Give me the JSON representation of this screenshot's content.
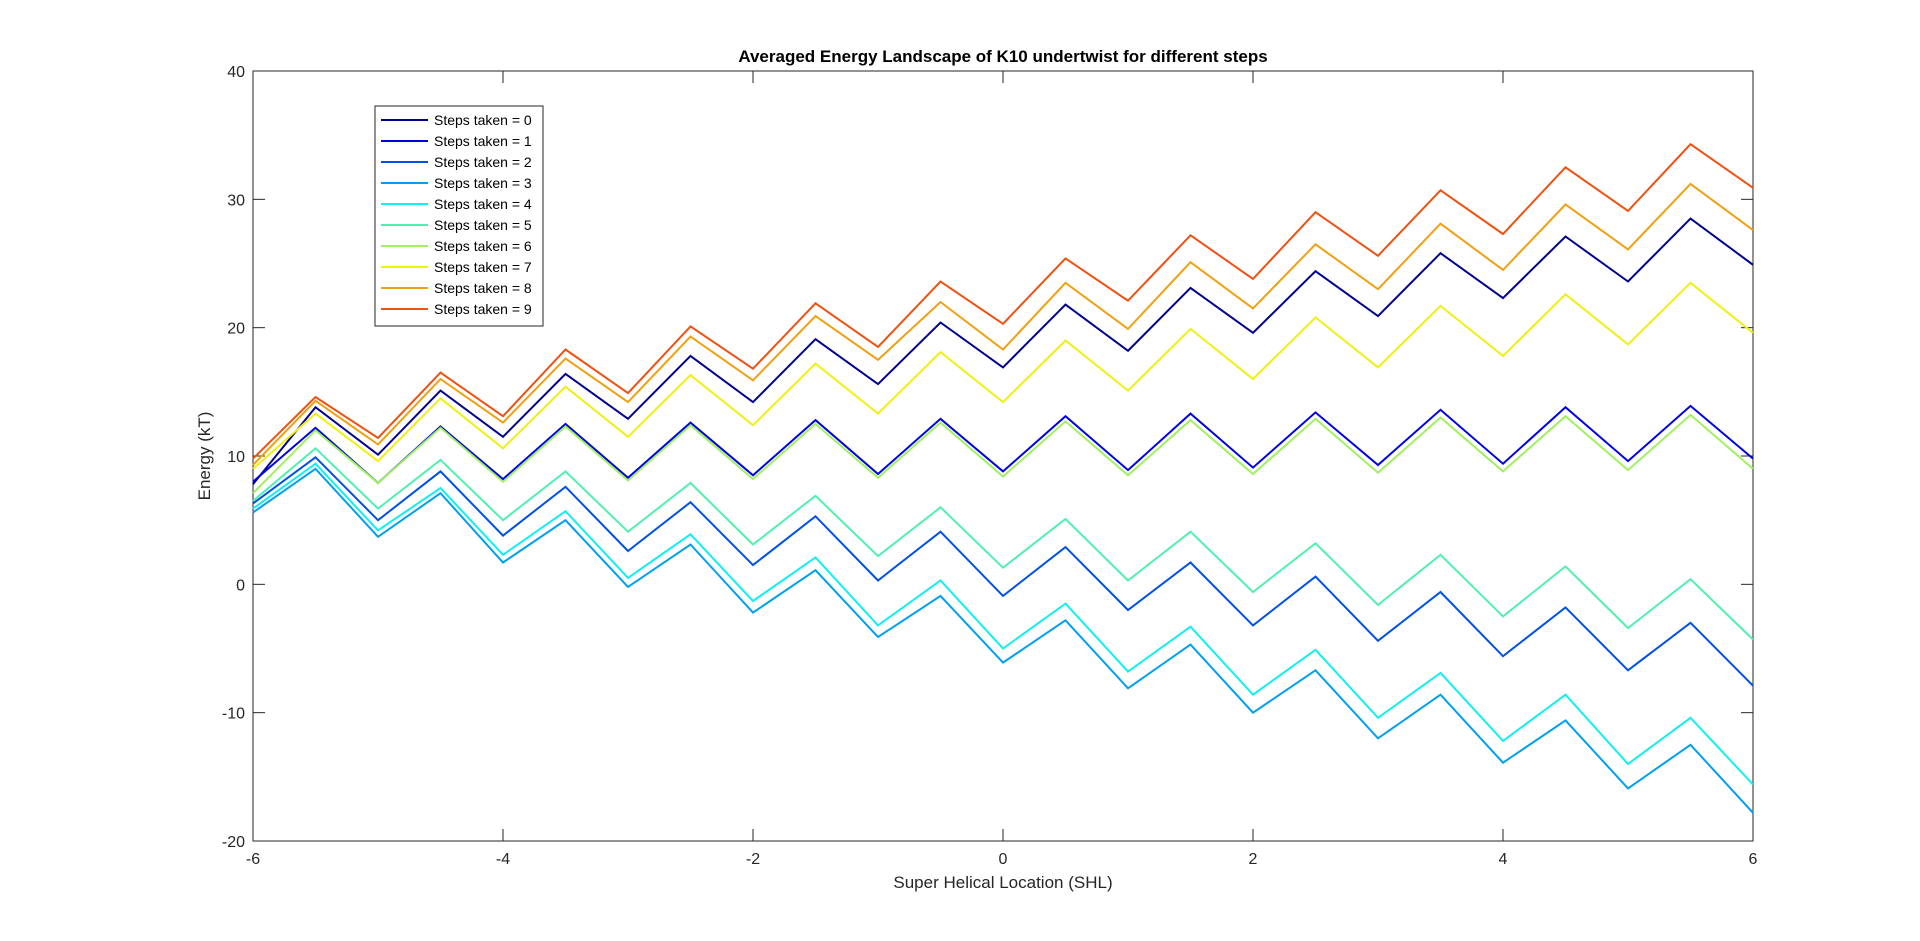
{
  "chart_data": {
    "type": "line",
    "title": "Averaged Energy Landscape of K10 undertwist for different steps",
    "xlabel": "Super Helical Location (SHL)",
    "ylabel": "Energy (kT)",
    "xlim": [
      -6,
      6
    ],
    "ylim": [
      -20,
      40
    ],
    "xticks": [
      -6,
      -4,
      -2,
      0,
      2,
      4,
      6
    ],
    "yticks": [
      -20,
      -10,
      0,
      10,
      20,
      30,
      40
    ],
    "grid": false,
    "box": true,
    "legend_position": "top-left",
    "x": [
      -6,
      -5.5,
      -5,
      -4.5,
      -4,
      -3.5,
      -3,
      -2.5,
      -2,
      -1.5,
      -1,
      -0.5,
      0,
      0.5,
      1,
      1.5,
      2,
      2.5,
      3,
      3.5,
      4,
      4.5,
      5,
      5.5,
      6
    ],
    "series": [
      {
        "name": "Steps taken = 0",
        "color": "#00008f",
        "values": [
          7.8,
          13.8,
          10.1,
          15.1,
          11.5,
          16.4,
          12.9,
          17.8,
          14.2,
          19.1,
          15.6,
          20.4,
          16.9,
          21.8,
          18.2,
          23.1,
          19.6,
          24.4,
          20.9,
          25.8,
          22.3,
          27.1,
          23.6,
          28.5,
          24.9
        ]
      },
      {
        "name": "Steps taken = 1",
        "color": "#0000e8",
        "values": [
          8.0,
          12.2,
          7.9,
          12.3,
          8.2,
          12.5,
          8.3,
          12.6,
          8.5,
          12.8,
          8.6,
          12.9,
          8.8,
          13.1,
          8.9,
          13.3,
          9.1,
          13.4,
          9.3,
          13.6,
          9.4,
          13.8,
          9.6,
          13.9,
          9.8
        ]
      },
      {
        "name": "Steps taken = 2",
        "color": "#0050ea",
        "values": [
          6.3,
          9.9,
          5.0,
          8.8,
          3.8,
          7.6,
          2.6,
          6.4,
          1.5,
          5.3,
          0.3,
          4.1,
          -0.9,
          2.9,
          -2.0,
          1.7,
          -3.2,
          0.6,
          -4.4,
          -0.6,
          -5.6,
          -1.8,
          -6.7,
          -3.0,
          -7.9
        ]
      },
      {
        "name": "Steps taken = 3",
        "color": "#00a0f0",
        "values": [
          5.6,
          9.0,
          3.7,
          7.1,
          1.7,
          5.0,
          -0.2,
          3.1,
          -2.2,
          1.1,
          -4.1,
          -0.9,
          -6.1,
          -2.8,
          -8.1,
          -4.7,
          -10.0,
          -6.7,
          -12.0,
          -8.6,
          -13.9,
          -10.6,
          -15.9,
          -12.5,
          -17.8
        ]
      },
      {
        "name": "Steps taken = 4",
        "color": "#10f0f0",
        "values": [
          5.9,
          9.4,
          4.2,
          7.5,
          2.3,
          5.7,
          0.5,
          3.9,
          -1.3,
          2.1,
          -3.2,
          0.3,
          -5.0,
          -1.5,
          -6.8,
          -3.3,
          -8.6,
          -5.1,
          -10.4,
          -6.9,
          -12.2,
          -8.6,
          -14.0,
          -10.4,
          -15.6
        ]
      },
      {
        "name": "Steps taken = 5",
        "color": "#50f0b0",
        "values": [
          6.5,
          10.6,
          5.9,
          9.7,
          5.0,
          8.8,
          4.1,
          7.9,
          3.1,
          6.9,
          2.2,
          6.0,
          1.3,
          5.1,
          0.3,
          4.1,
          -0.6,
          3.2,
          -1.6,
          2.3,
          -2.5,
          1.4,
          -3.4,
          0.4,
          -4.3
        ]
      },
      {
        "name": "Steps taken = 6",
        "color": "#a0f060",
        "values": [
          7.1,
          12.0,
          7.9,
          12.2,
          8.0,
          12.3,
          8.1,
          12.4,
          8.2,
          12.5,
          8.3,
          12.6,
          8.4,
          12.7,
          8.5,
          12.8,
          8.6,
          12.9,
          8.7,
          13.0,
          8.8,
          13.1,
          8.9,
          13.2,
          9.0
        ]
      },
      {
        "name": "Steps taken = 7",
        "color": "#f0f010",
        "values": [
          9.0,
          13.3,
          9.6,
          14.5,
          10.6,
          15.4,
          11.5,
          16.3,
          12.4,
          17.2,
          13.3,
          18.1,
          14.2,
          19.0,
          15.1,
          19.9,
          16.0,
          20.8,
          16.9,
          21.7,
          17.8,
          22.6,
          18.7,
          23.5,
          19.6
        ]
      },
      {
        "name": "Steps taken = 8",
        "color": "#f0a010",
        "values": [
          9.3,
          14.3,
          10.9,
          16.0,
          12.6,
          17.6,
          14.2,
          19.3,
          15.9,
          20.9,
          17.5,
          22.0,
          18.3,
          23.5,
          19.9,
          25.1,
          21.5,
          26.5,
          23.0,
          28.1,
          24.5,
          29.6,
          26.1,
          31.2,
          27.6
        ]
      },
      {
        "name": "Steps taken = 9",
        "color": "#f05010",
        "values": [
          9.8,
          14.6,
          11.4,
          16.5,
          13.1,
          18.3,
          14.9,
          20.1,
          16.8,
          21.9,
          18.5,
          23.6,
          20.3,
          25.4,
          22.1,
          27.2,
          23.8,
          29.0,
          25.6,
          30.7,
          27.3,
          32.5,
          29.1,
          34.3,
          30.9
        ]
      }
    ]
  }
}
